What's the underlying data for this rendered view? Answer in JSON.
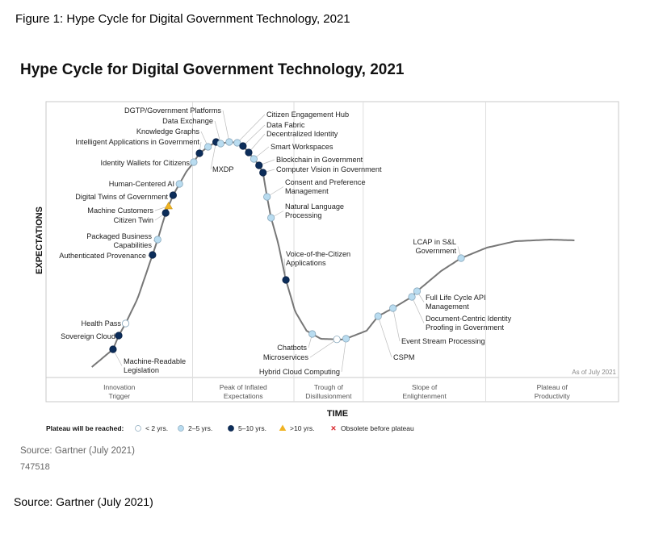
{
  "figure_caption": "Figure 1: Hype Cycle for Digital Government Technology, 2021",
  "source_note": "Source: Gartner (July 2021)",
  "document_id": "747518",
  "footer_source": "Source: Gartner (July 2021)",
  "colors": {
    "lt2": "#ffffff",
    "y2to5": "#b9dcf0",
    "y5to10": "#0c2d5a",
    "gt10": "#f0b323",
    "obsolete": "#d8262c",
    "curve": "#777777",
    "frame": "#c8c8c8"
  },
  "chart_data": {
    "type": "hype-cycle",
    "title": "Hype Cycle for Digital Government Technology, 2021",
    "ylabel": "EXPECTATIONS",
    "xlabel": "TIME",
    "as_of": "As of July 2021",
    "phases": [
      {
        "label_lines": [
          "Innovation",
          "Trigger"
        ],
        "start": 0.0,
        "end": 0.256
      },
      {
        "label_lines": [
          "Peak of Inflated",
          "Expectations"
        ],
        "start": 0.256,
        "end": 0.433
      },
      {
        "label_lines": [
          "Trough of",
          "Disillusionment"
        ],
        "start": 0.433,
        "end": 0.554
      },
      {
        "label_lines": [
          "Slope of",
          "Enlightenment"
        ],
        "start": 0.554,
        "end": 0.768
      },
      {
        "label_lines": [
          "Plateau of",
          "Productivity"
        ],
        "start": 0.768,
        "end": 1.0
      }
    ],
    "legend": {
      "title": "Plateau will be reached:",
      "items": [
        {
          "key": "lt2",
          "label": "< 2 yrs."
        },
        {
          "key": "y2to5",
          "label": "2–5 yrs."
        },
        {
          "key": "y5to10",
          "label": "5–10 yrs."
        },
        {
          "key": "gt10",
          "label": ">10 yrs."
        },
        {
          "key": "obsolete",
          "label": "Obsolete before plateau"
        }
      ]
    },
    "technologies": [
      {
        "name": [
          "Machine-Readable",
          "Legislation"
        ],
        "t": 0.117,
        "plateau": "y5to10"
      },
      {
        "name": [
          "Sovereign Cloud"
        ],
        "t": 0.127,
        "plateau": "y5to10"
      },
      {
        "name": [
          "Health Pass"
        ],
        "t": 0.139,
        "plateau": "lt2"
      },
      {
        "name": [
          "Authenticated Provenance"
        ],
        "t": 0.186,
        "plateau": "y5to10"
      },
      {
        "name": [
          "Packaged Business",
          "Capabilities"
        ],
        "t": 0.195,
        "plateau": "y2to5"
      },
      {
        "name": [
          "Citizen Twin"
        ],
        "t": 0.209,
        "plateau": "y5to10"
      },
      {
        "name": [
          "Machine Customers"
        ],
        "t": 0.214,
        "plateau": "gt10"
      },
      {
        "name": [
          "Digital Twins of Government"
        ],
        "t": 0.222,
        "plateau": "y5to10"
      },
      {
        "name": [
          "Human-Centered AI"
        ],
        "t": 0.233,
        "plateau": "y2to5"
      },
      {
        "name": [
          "Identity Wallets for Citizens"
        ],
        "t": 0.258,
        "plateau": "y2to5"
      },
      {
        "name": [
          "Intelligent Applications in Government"
        ],
        "t": 0.268,
        "plateau": "y5to10"
      },
      {
        "name": [
          "Knowledge Graphs"
        ],
        "t": 0.283,
        "plateau": "y2to5"
      },
      {
        "name": [
          "MXDP"
        ],
        "t": 0.297,
        "plateau": "y5to10"
      },
      {
        "name": [
          "Data Exchange"
        ],
        "t": 0.305,
        "plateau": "y2to5"
      },
      {
        "name": [
          "DGTP/Government Platforms"
        ],
        "t": 0.32,
        "plateau": "y2to5"
      },
      {
        "name": [
          "Citizen Engagement Hub"
        ],
        "t": 0.334,
        "plateau": "y2to5"
      },
      {
        "name": [
          "Data Fabric"
        ],
        "t": 0.344,
        "plateau": "y5to10"
      },
      {
        "name": [
          "Decentralized Identity"
        ],
        "t": 0.354,
        "plateau": "y5to10"
      },
      {
        "name": [
          "Smart Workspaces"
        ],
        "t": 0.363,
        "plateau": "y2to5"
      },
      {
        "name": [
          "Blockchain in Government"
        ],
        "t": 0.372,
        "plateau": "y5to10"
      },
      {
        "name": [
          "Computer Vision in Government"
        ],
        "t": 0.379,
        "plateau": "y5to10"
      },
      {
        "name": [
          "Consent and Preference",
          "Management"
        ],
        "t": 0.386,
        "plateau": "y2to5"
      },
      {
        "name": [
          "Natural Language",
          "Processing"
        ],
        "t": 0.393,
        "plateau": "y2to5"
      },
      {
        "name": [
          "Voice-of-the-Citizen",
          "Applications"
        ],
        "t": 0.419,
        "plateau": "y5to10"
      },
      {
        "name": [
          "Chatbots"
        ],
        "t": 0.465,
        "plateau": "y2to5"
      },
      {
        "name": [
          "Microservices"
        ],
        "t": 0.508,
        "plateau": "lt2"
      },
      {
        "name": [
          "Hybrid Cloud Computing"
        ],
        "t": 0.524,
        "plateau": "y2to5"
      },
      {
        "name": [
          "CSPM"
        ],
        "t": 0.58,
        "plateau": "y2to5"
      },
      {
        "name": [
          "Event Stream Processing"
        ],
        "t": 0.606,
        "plateau": "y2to5"
      },
      {
        "name": [
          "Document-Centric Identity",
          "Proofing in Government"
        ],
        "t": 0.639,
        "plateau": "y2to5"
      },
      {
        "name": [
          "Full Life Cycle API",
          "Management"
        ],
        "t": 0.648,
        "plateau": "y2to5"
      },
      {
        "name": [
          "LCAP in S&L",
          "Government"
        ],
        "t": 0.725,
        "plateau": "y2to5"
      }
    ]
  }
}
